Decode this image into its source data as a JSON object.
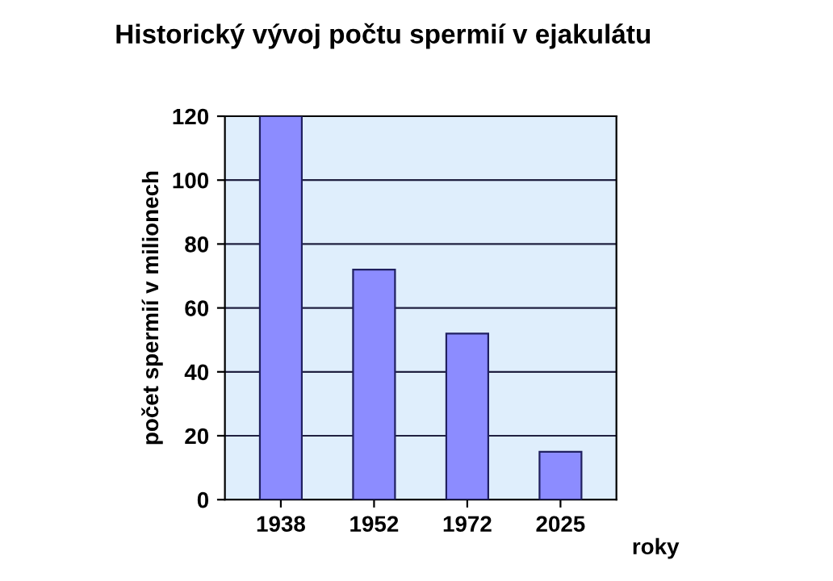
{
  "chart_data": {
    "type": "bar",
    "title": "Historický vývoj počtu spermií v ejakulátu",
    "xlabel": "roky",
    "ylabel": "počet spermií v milionech",
    "categories": [
      "1938",
      "1952",
      "1972",
      "2025"
    ],
    "values": [
      120,
      72,
      52,
      15
    ],
    "color": "#8c8cff",
    "ylim": [
      0,
      120
    ],
    "yticks": [
      0,
      20,
      40,
      60,
      80,
      100,
      120
    ],
    "grid": "y"
  }
}
